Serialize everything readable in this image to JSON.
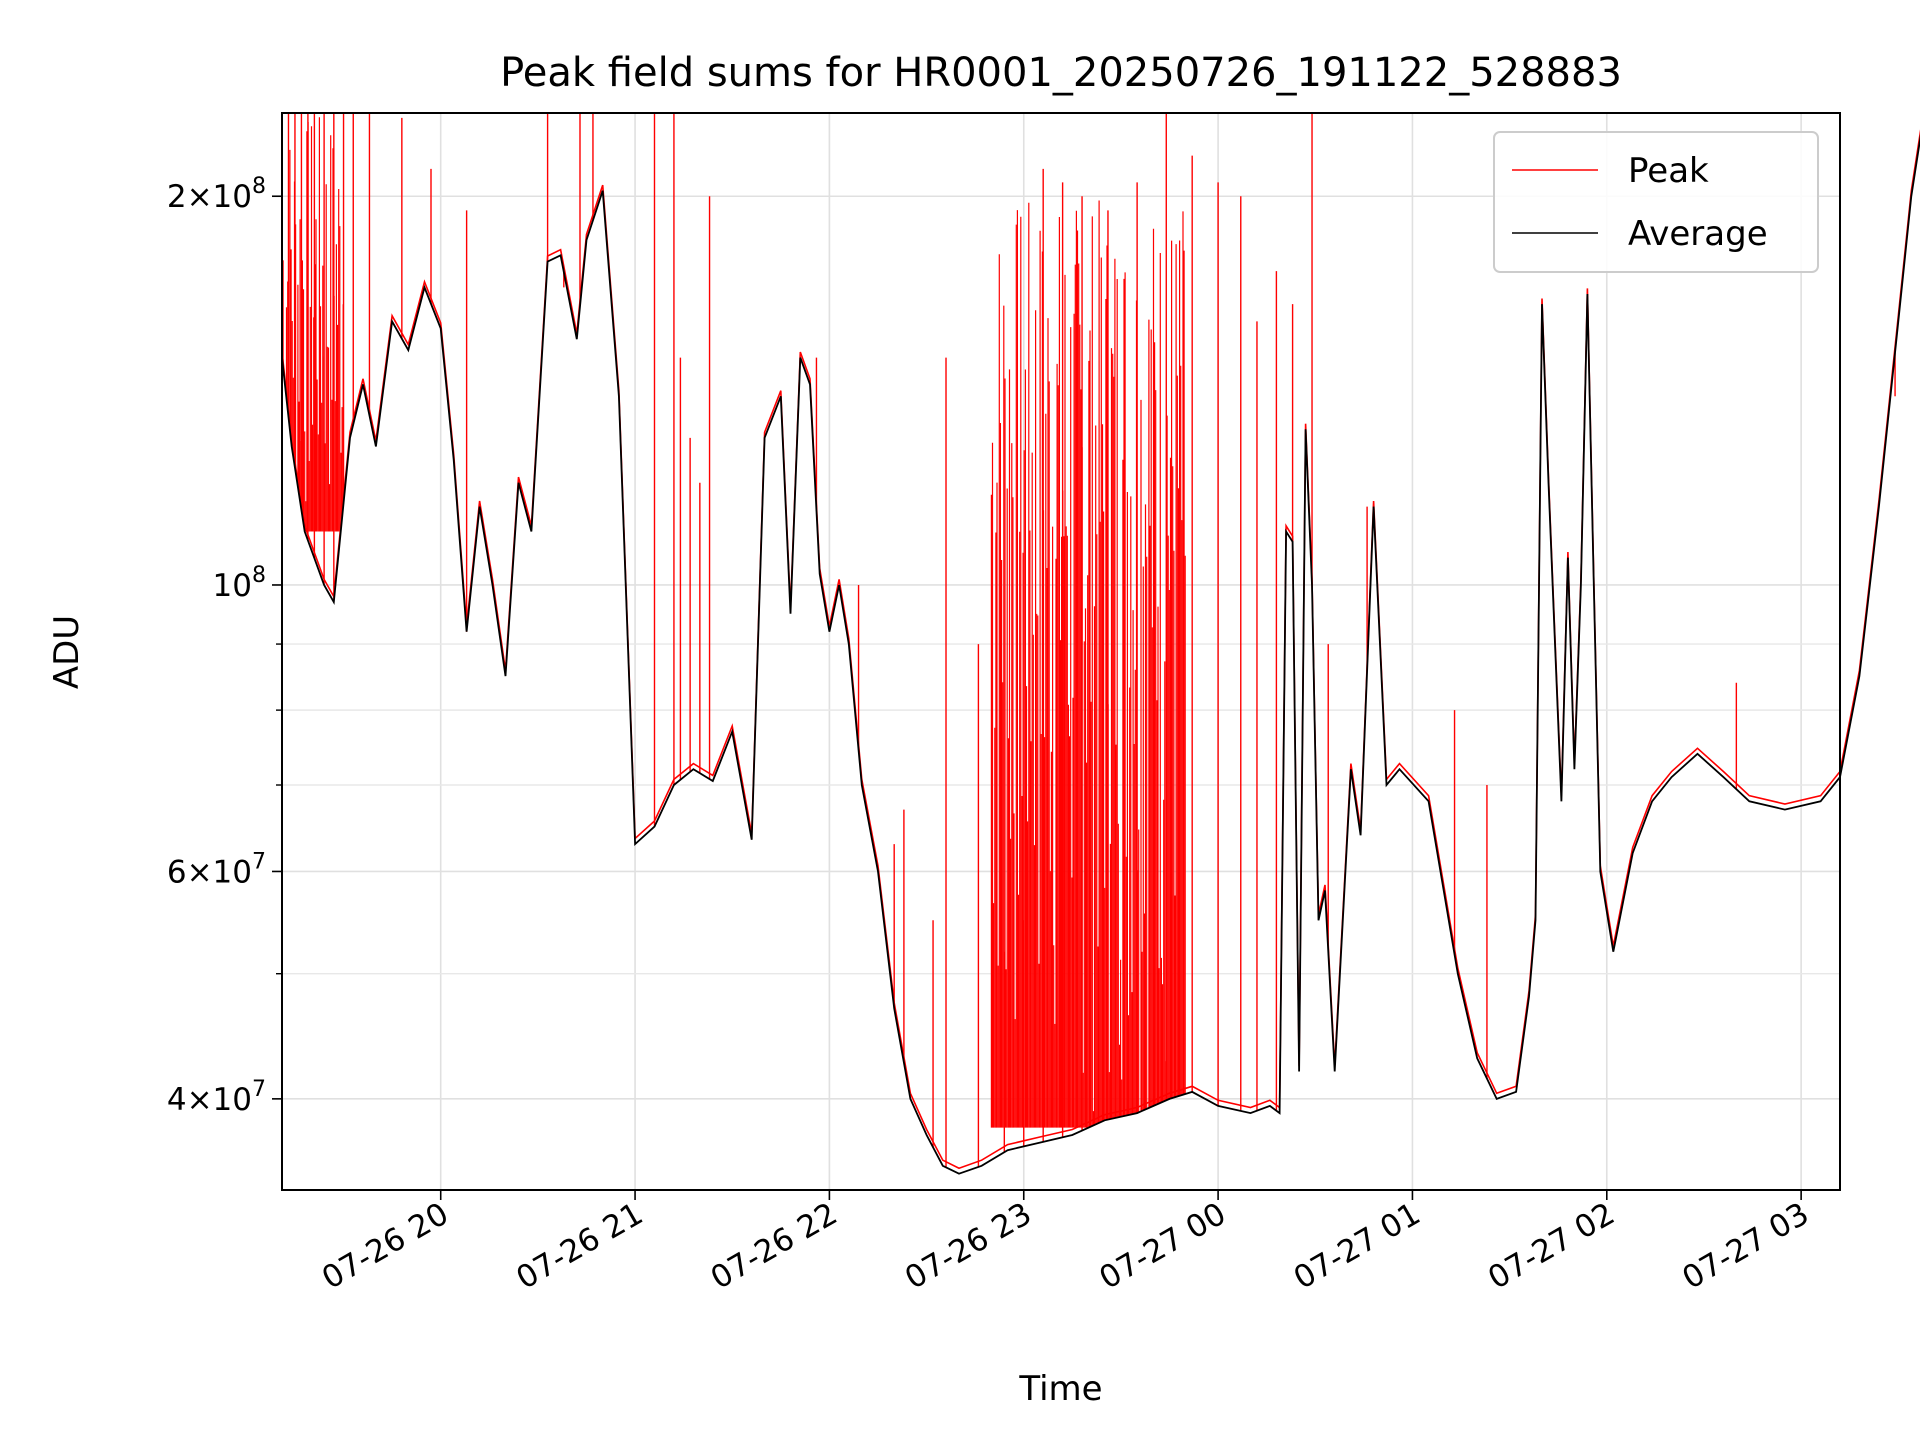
{
  "chart_data": {
    "type": "line",
    "title": "Peak field sums for HR0001_20250726_191122_528883",
    "xlabel": "Time",
    "ylabel": "ADU",
    "y_scale": "log",
    "ylim": [
      34000000,
      232000000
    ],
    "xlim": [
      "07-26 19:11",
      "07-27 03:12"
    ],
    "x_ticks": [
      "07-26 20",
      "07-26 21",
      "07-26 22",
      "07-26 23",
      "07-27 00",
      "07-27 01",
      "07-27 02",
      "07-27 03"
    ],
    "y_major_ticks": [
      {
        "value": 40000000,
        "mantissa": "4",
        "exp": "7"
      },
      {
        "value": 60000000,
        "mantissa": "6",
        "exp": "7"
      },
      {
        "value": 100000000,
        "mantissa": "",
        "exp": "8"
      },
      {
        "value": 200000000,
        "mantissa": "2",
        "exp": "8"
      }
    ],
    "y_minor_grid": [
      50000000,
      70000000,
      80000000,
      90000000
    ],
    "grid": true,
    "legend": {
      "position": "top-right"
    },
    "series": [
      {
        "name": "Average",
        "color": "#000000",
        "points": [
          [
            "07-26 19:11",
            150000000
          ],
          [
            "07-26 19:14",
            128000000
          ],
          [
            "07-26 19:18",
            110000000
          ],
          [
            "07-26 19:24",
            100000000
          ],
          [
            "07-26 19:27",
            97000000
          ],
          [
            "07-26 19:32",
            130000000
          ],
          [
            "07-26 19:36",
            143000000
          ],
          [
            "07-26 19:40",
            128000000
          ],
          [
            "07-26 19:45",
            160000000
          ],
          [
            "07-26 19:50",
            152000000
          ],
          [
            "07-26 19:55",
            170000000
          ],
          [
            "07-26 20:00",
            158000000
          ],
          [
            "07-26 20:04",
            125000000
          ],
          [
            "07-26 20:08",
            92000000
          ],
          [
            "07-26 20:12",
            115000000
          ],
          [
            "07-26 20:16",
            100000000
          ],
          [
            "07-26 20:20",
            85000000
          ],
          [
            "07-26 20:24",
            120000000
          ],
          [
            "07-26 20:28",
            110000000
          ],
          [
            "07-26 20:33",
            178000000
          ],
          [
            "07-26 20:37",
            180000000
          ],
          [
            "07-26 20:42",
            155000000
          ],
          [
            "07-26 20:45",
            185000000
          ],
          [
            "07-26 20:50",
            202000000
          ],
          [
            "07-26 20:55",
            140000000
          ],
          [
            "07-26 21:00",
            63000000
          ],
          [
            "07-26 21:06",
            65000000
          ],
          [
            "07-26 21:12",
            70000000
          ],
          [
            "07-26 21:18",
            72000000
          ],
          [
            "07-26 21:24",
            70500000
          ],
          [
            "07-26 21:30",
            77000000
          ],
          [
            "07-26 21:36",
            63500000
          ],
          [
            "07-26 21:40",
            130000000
          ],
          [
            "07-26 21:45",
            140000000
          ],
          [
            "07-26 21:48",
            95000000
          ],
          [
            "07-26 21:51",
            150000000
          ],
          [
            "07-26 21:54",
            143000000
          ],
          [
            "07-26 21:57",
            102000000
          ],
          [
            "07-26 22:00",
            92000000
          ],
          [
            "07-26 22:03",
            100000000
          ],
          [
            "07-26 22:06",
            90000000
          ],
          [
            "07-26 22:10",
            70000000
          ],
          [
            "07-26 22:15",
            60000000
          ],
          [
            "07-26 22:20",
            47000000
          ],
          [
            "07-26 22:25",
            40000000
          ],
          [
            "07-26 22:30",
            37500000
          ],
          [
            "07-26 22:35",
            35500000
          ],
          [
            "07-26 22:40",
            35000000
          ],
          [
            "07-26 22:47",
            35500000
          ],
          [
            "07-26 22:55",
            36500000
          ],
          [
            "07-26 23:05",
            37000000
          ],
          [
            "07-26 23:15",
            37500000
          ],
          [
            "07-26 23:25",
            38500000
          ],
          [
            "07-26 23:35",
            39000000
          ],
          [
            "07-26 23:45",
            40000000
          ],
          [
            "07-26 23:52",
            40500000
          ],
          [
            "07-27 00:00",
            39500000
          ],
          [
            "07-27 00:10",
            39000000
          ],
          [
            "07-27 00:16",
            39500000
          ],
          [
            "07-27 00:19",
            39000000
          ],
          [
            "07-27 00:21",
            110000000
          ],
          [
            "07-27 00:23",
            108000000
          ],
          [
            "07-27 00:25",
            42000000
          ],
          [
            "07-27 00:27",
            132000000
          ],
          [
            "07-27 00:29",
            100000000
          ],
          [
            "07-27 00:31",
            55000000
          ],
          [
            "07-27 00:33",
            58000000
          ],
          [
            "07-27 00:36",
            42000000
          ],
          [
            "07-27 00:41",
            72000000
          ],
          [
            "07-27 00:44",
            64000000
          ],
          [
            "07-27 00:48",
            115000000
          ],
          [
            "07-27 00:52",
            70000000
          ],
          [
            "07-27 00:56",
            72000000
          ],
          [
            "07-27 01:05",
            68000000
          ],
          [
            "07-27 01:14",
            50000000
          ],
          [
            "07-27 01:20",
            43000000
          ],
          [
            "07-27 01:26",
            40000000
          ],
          [
            "07-27 01:32",
            40500000
          ],
          [
            "07-27 01:36",
            48000000
          ],
          [
            "07-27 01:38",
            55000000
          ],
          [
            "07-27 01:40",
            165000000
          ],
          [
            "07-27 01:42",
            120000000
          ],
          [
            "07-27 01:44",
            90000000
          ],
          [
            "07-27 01:46",
            68000000
          ],
          [
            "07-27 01:48",
            105000000
          ],
          [
            "07-27 01:50",
            72000000
          ],
          [
            "07-27 01:52",
            100000000
          ],
          [
            "07-27 01:54",
            168000000
          ],
          [
            "07-27 01:56",
            100000000
          ],
          [
            "07-27 01:58",
            60000000
          ],
          [
            "07-27 02:02",
            52000000
          ],
          [
            "07-27 02:08",
            62000000
          ],
          [
            "07-27 02:14",
            68000000
          ],
          [
            "07-27 02:20",
            71000000
          ],
          [
            "07-27 02:28",
            74000000
          ],
          [
            "07-27 02:36",
            71000000
          ],
          [
            "07-27 02:44",
            68000000
          ],
          [
            "07-27 02:55",
            67000000
          ],
          [
            "07-27 03:06",
            68000000
          ],
          [
            "07-27 03:12",
            71000000
          ],
          [
            "07-27 03:18",
            85000000
          ],
          [
            "07-27 03:24",
            115000000
          ],
          [
            "07-27 03:30",
            160000000
          ],
          [
            "07-27 03:34",
            200000000
          ],
          [
            "07-27 03:38",
            232000000
          ]
        ]
      },
      {
        "name": "Peak",
        "color": "#ff0000",
        "spikes": [
          [
            "07-26 19:11",
            232000000
          ],
          [
            "07-26 19:13",
            232000000
          ],
          [
            "07-26 19:15",
            232000000
          ],
          [
            "07-26 19:17",
            232000000
          ],
          [
            "07-26 19:19",
            232000000
          ],
          [
            "07-26 19:21",
            232000000
          ],
          [
            "07-26 19:24",
            232000000
          ],
          [
            "07-26 19:27",
            232000000
          ],
          [
            "07-26 19:30",
            232000000
          ],
          [
            "07-26 19:33",
            232000000
          ],
          [
            "07-26 19:38",
            232000000
          ],
          [
            "07-26 19:48",
            230000000
          ],
          [
            "07-26 19:57",
            210000000
          ],
          [
            "07-26 20:08",
            195000000
          ],
          [
            "07-26 20:33",
            232000000
          ],
          [
            "07-26 20:38",
            170000000
          ],
          [
            "07-26 20:43",
            232000000
          ],
          [
            "07-26 20:47",
            232000000
          ],
          [
            "07-26 21:06",
            232000000
          ],
          [
            "07-26 21:12",
            232000000
          ],
          [
            "07-26 21:14",
            150000000
          ],
          [
            "07-26 21:17",
            130000000
          ],
          [
            "07-26 21:20",
            120000000
          ],
          [
            "07-26 21:23",
            200000000
          ],
          [
            "07-26 21:56",
            150000000
          ],
          [
            "07-26 22:09",
            100000000
          ],
          [
            "07-26 22:20",
            63000000
          ],
          [
            "07-26 22:23",
            67000000
          ],
          [
            "07-26 22:32",
            55000000
          ],
          [
            "07-26 22:36",
            150000000
          ],
          [
            "07-26 22:46",
            90000000
          ],
          [
            "07-26 22:54",
            52000000
          ],
          [
            "07-26 23:00",
            55000000
          ],
          [
            "07-26 23:06",
            210000000
          ],
          [
            "07-26 23:12",
            205000000
          ],
          [
            "07-26 23:18",
            200000000
          ],
          [
            "07-26 23:26",
            195000000
          ],
          [
            "07-26 23:35",
            205000000
          ],
          [
            "07-26 23:44",
            232000000
          ],
          [
            "07-26 23:52",
            215000000
          ],
          [
            "07-27 00:00",
            205000000
          ],
          [
            "07-27 00:07",
            200000000
          ],
          [
            "07-27 00:12",
            160000000
          ],
          [
            "07-27 00:18",
            175000000
          ],
          [
            "07-27 00:23",
            165000000
          ],
          [
            "07-27 00:29",
            232000000
          ],
          [
            "07-27 00:34",
            90000000
          ],
          [
            "07-27 00:46",
            115000000
          ],
          [
            "07-27 01:13",
            80000000
          ],
          [
            "07-27 01:23",
            70000000
          ],
          [
            "07-27 02:40",
            84000000
          ],
          [
            "07-27 03:29",
            140000000
          ]
        ],
        "dense_bands": [
          {
            "start": "07-26 22:50",
            "end": "07-26 23:50",
            "low": 38000000,
            "high": 200000000
          },
          {
            "start": "07-26 19:11",
            "end": "07-26 19:30",
            "low": 110000000,
            "high": 232000000
          }
        ]
      }
    ]
  }
}
